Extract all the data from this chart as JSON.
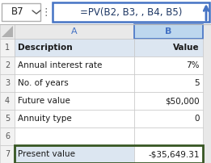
{
  "formula_bar_cell": "B7",
  "formula_bar_formula": "=PV(B2, B3, , B4, B5)",
  "rows": [
    {
      "row": 1,
      "a": "Description",
      "b": "Value",
      "header": true
    },
    {
      "row": 2,
      "a": "Annual interest rate",
      "b": "7%"
    },
    {
      "row": 3,
      "a": "No. of years",
      "b": "5"
    },
    {
      "row": 4,
      "a": "Future value",
      "b": "$50,000"
    },
    {
      "row": 5,
      "a": "Annuity type",
      "b": "0"
    },
    {
      "row": 6,
      "a": "",
      "b": ""
    },
    {
      "row": 7,
      "a": "Present value",
      "b": "-$35,649.31",
      "result": true
    }
  ],
  "result_border_color": "#375623",
  "formula_box_border": "#4472c4",
  "formula_text_color": "#1f3864",
  "header_text_color": "#4472c4",
  "grid_color": "#c0c0c0",
  "col_a_bg": "#dce6f1",
  "col_b_selected_header_bg": "#bdd7ee",
  "col_header_bg": "#e9e9e9",
  "white": "#ffffff",
  "arrow_color": "#4472c4",
  "row_num_col_bg": "#f2f2f2",
  "result_row_a_bg": "#dce6f1",
  "row_header_bg": "#dce6f1"
}
